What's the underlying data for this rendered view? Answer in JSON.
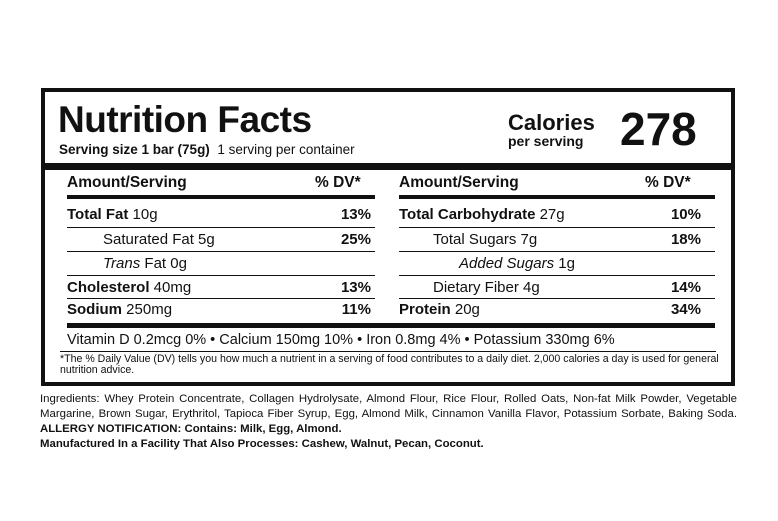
{
  "title": "Nutrition Facts",
  "serving": {
    "size_label": "Serving size 1 bar (75g)",
    "per_container": "1 serving per container"
  },
  "calories": {
    "label": "Calories",
    "sub_label": "per serving",
    "value": "278"
  },
  "left_header": {
    "amount": "Amount/Serving",
    "dv": "% DV*"
  },
  "right_header": {
    "amount": "Amount/Serving",
    "dv": "% DV*"
  },
  "left_rows": [
    {
      "name": "Total Fat",
      "amount": " 10g",
      "dv": "13%"
    },
    {
      "name": "Saturated Fat 5g",
      "amount": "",
      "dv": "25%"
    },
    {
      "name": "Trans",
      "amount": " Fat 0g",
      "dv": ""
    },
    {
      "name": "Cholesterol",
      "amount": " 40mg",
      "dv": "13%"
    },
    {
      "name": "Sodium",
      "amount": " 250mg",
      "dv": "11%"
    }
  ],
  "right_rows": [
    {
      "name": "Total Carbohydrate",
      "amount": " 27g",
      "dv": "10%"
    },
    {
      "name": "Total Sugars 7g",
      "amount": "",
      "dv": "18%"
    },
    {
      "name": "Added Sugars",
      "amount": " 1g",
      "dv": ""
    },
    {
      "name": "Dietary Fiber 4g",
      "amount": "",
      "dv": "14%"
    },
    {
      "name": "Protein",
      "amount": " 20g",
      "dv": "34%"
    }
  ],
  "vitamins": "Vitamin D 0.2mcg 0% • Calcium 150mg 10% • Iron 0.8mg 4% • Potassium 330mg 6%",
  "footnote": "*The % Daily Value (DV) tells you how much a nutrient in a serving of food contributes to a daily diet. 2,000 calories a day is used for general nutrition advice.",
  "ingredients": {
    "text": "Ingredients: Whey Protein Concentrate, Collagen Hydrolysate, Almond Flour, Rice Flour, Rolled Oats, Non-fat Milk Powder, Vegetable Margarine, Brown Sugar, Erythritol, Tapioca Fiber Syrup, Egg, Almond Milk, Cinnamon Vanilla Flavor, Potassium Sorbate, Baking Soda.",
    "allergy": "ALLERGY NOTIFICATION: Contains: Milk, Egg, Almond.",
    "facility": "Manufactured In a Facility That Also Processes: Cashew, Walnut, Pecan, Coconut."
  }
}
